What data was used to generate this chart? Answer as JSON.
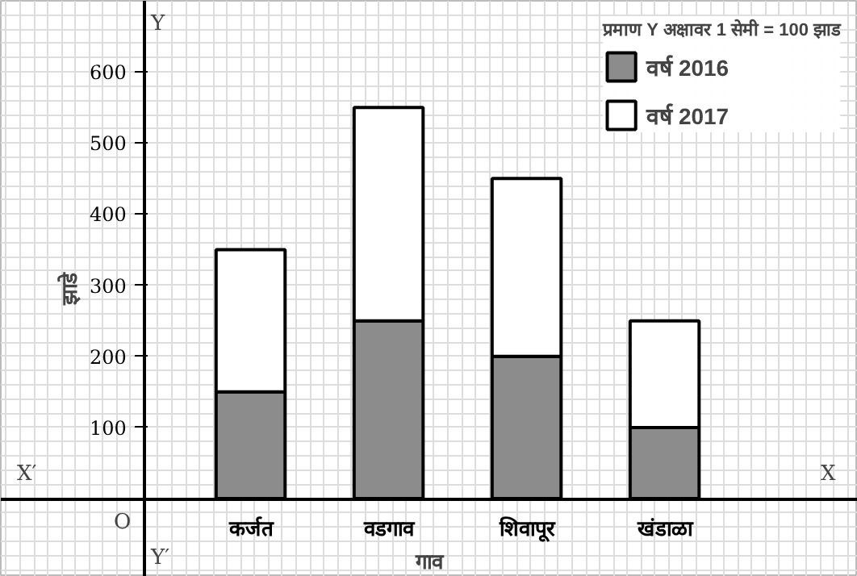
{
  "chart_data": {
    "type": "bar",
    "stacked": true,
    "categories": [
      "कर्जत",
      "वडगाव",
      "शिवापूर",
      "खंडाळा"
    ],
    "series": [
      {
        "name": "वर्ष 2016",
        "color": "#8c8c8c",
        "values": [
          150,
          250,
          200,
          100
        ]
      },
      {
        "name": "वर्ष 2017",
        "color": "#ffffff",
        "values": [
          200,
          300,
          250,
          150
        ]
      }
    ],
    "legend_title": "प्रमाण Y अक्षावर 1 सेमी = 100 झाड",
    "legend": "top right",
    "xlabel": "गाव",
    "ylabel": "झाडे",
    "ylim": [
      -110,
      700
    ],
    "yticks": [
      100,
      200,
      300,
      400,
      500,
      600
    ],
    "grid": true,
    "annotations": [
      "Y",
      "Y′",
      "X",
      "X′",
      "O"
    ]
  }
}
